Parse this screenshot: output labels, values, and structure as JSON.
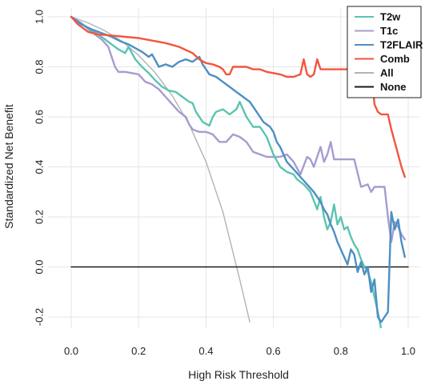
{
  "chart_data": {
    "type": "line",
    "title": "",
    "xlabel": "High Risk Threshold",
    "ylabel": "Standardized Net Benefit",
    "xlim": [
      0.0,
      1.0
    ],
    "ylim": [
      -0.2,
      1.0
    ],
    "xticks": [
      "0.0",
      "0.2",
      "0.4",
      "0.6",
      "0.8",
      "1.0"
    ],
    "yticks": [
      "-0.2",
      "0.0",
      "0.2",
      "0.4",
      "0.6",
      "0.8",
      "1.0"
    ],
    "grid": true,
    "legend_position": "top-right",
    "series": [
      {
        "name": "T2w",
        "color": "#5bc4b0",
        "points": [
          [
            0.0,
            1.0
          ],
          [
            0.02,
            0.98
          ],
          [
            0.05,
            0.955
          ],
          [
            0.08,
            0.93
          ],
          [
            0.1,
            0.91
          ],
          [
            0.12,
            0.89
          ],
          [
            0.14,
            0.87
          ],
          [
            0.16,
            0.855
          ],
          [
            0.17,
            0.88
          ],
          [
            0.19,
            0.83
          ],
          [
            0.21,
            0.8
          ],
          [
            0.23,
            0.775
          ],
          [
            0.25,
            0.745
          ],
          [
            0.27,
            0.72
          ],
          [
            0.29,
            0.705
          ],
          [
            0.31,
            0.7
          ],
          [
            0.33,
            0.68
          ],
          [
            0.35,
            0.66
          ],
          [
            0.36,
            0.655
          ],
          [
            0.37,
            0.62
          ],
          [
            0.39,
            0.58
          ],
          [
            0.41,
            0.565
          ],
          [
            0.42,
            0.6
          ],
          [
            0.43,
            0.62
          ],
          [
            0.45,
            0.63
          ],
          [
            0.47,
            0.61
          ],
          [
            0.49,
            0.63
          ],
          [
            0.5,
            0.66
          ],
          [
            0.52,
            0.6
          ],
          [
            0.54,
            0.56
          ],
          [
            0.56,
            0.56
          ],
          [
            0.58,
            0.52
          ],
          [
            0.6,
            0.45
          ],
          [
            0.62,
            0.4
          ],
          [
            0.64,
            0.38
          ],
          [
            0.66,
            0.37
          ],
          [
            0.67,
            0.35
          ],
          [
            0.69,
            0.33
          ],
          [
            0.71,
            0.3
          ],
          [
            0.72,
            0.265
          ],
          [
            0.73,
            0.23
          ],
          [
            0.74,
            0.28
          ],
          [
            0.75,
            0.2
          ],
          [
            0.76,
            0.15
          ],
          [
            0.77,
            0.18
          ],
          [
            0.78,
            0.25
          ],
          [
            0.79,
            0.17
          ],
          [
            0.8,
            0.2
          ],
          [
            0.81,
            0.15
          ],
          [
            0.82,
            0.16
          ],
          [
            0.83,
            0.12
          ],
          [
            0.84,
            0.09
          ],
          [
            0.85,
            0.07
          ],
          [
            0.86,
            0.03
          ],
          [
            0.87,
            0.0
          ],
          [
            0.88,
            -0.02
          ],
          [
            0.89,
            -0.06
          ],
          [
            0.9,
            -0.12
          ],
          [
            0.91,
            -0.18
          ],
          [
            0.92,
            -0.25
          ]
        ]
      },
      {
        "name": "T1c",
        "color": "#a89bd0",
        "points": [
          [
            0.0,
            1.0
          ],
          [
            0.03,
            0.975
          ],
          [
            0.06,
            0.94
          ],
          [
            0.09,
            0.91
          ],
          [
            0.11,
            0.88
          ],
          [
            0.12,
            0.84
          ],
          [
            0.13,
            0.8
          ],
          [
            0.14,
            0.78
          ],
          [
            0.16,
            0.78
          ],
          [
            0.18,
            0.775
          ],
          [
            0.2,
            0.77
          ],
          [
            0.22,
            0.74
          ],
          [
            0.24,
            0.73
          ],
          [
            0.26,
            0.71
          ],
          [
            0.28,
            0.68
          ],
          [
            0.3,
            0.65
          ],
          [
            0.32,
            0.62
          ],
          [
            0.34,
            0.6
          ],
          [
            0.35,
            0.57
          ],
          [
            0.36,
            0.55
          ],
          [
            0.38,
            0.54
          ],
          [
            0.4,
            0.54
          ],
          [
            0.42,
            0.53
          ],
          [
            0.44,
            0.5
          ],
          [
            0.46,
            0.5
          ],
          [
            0.48,
            0.53
          ],
          [
            0.5,
            0.52
          ],
          [
            0.52,
            0.5
          ],
          [
            0.54,
            0.46
          ],
          [
            0.56,
            0.45
          ],
          [
            0.58,
            0.44
          ],
          [
            0.6,
            0.44
          ],
          [
            0.62,
            0.44
          ],
          [
            0.64,
            0.45
          ],
          [
            0.66,
            0.42
          ],
          [
            0.68,
            0.37
          ],
          [
            0.7,
            0.44
          ],
          [
            0.71,
            0.43
          ],
          [
            0.72,
            0.4
          ],
          [
            0.74,
            0.48
          ],
          [
            0.75,
            0.42
          ],
          [
            0.76,
            0.45
          ],
          [
            0.77,
            0.5
          ],
          [
            0.78,
            0.43
          ],
          [
            0.8,
            0.43
          ],
          [
            0.82,
            0.43
          ],
          [
            0.84,
            0.43
          ],
          [
            0.86,
            0.32
          ],
          [
            0.88,
            0.33
          ],
          [
            0.89,
            0.3
          ],
          [
            0.9,
            0.32
          ],
          [
            0.92,
            0.32
          ],
          [
            0.93,
            0.32
          ],
          [
            0.94,
            0.2
          ],
          [
            0.95,
            0.1
          ],
          [
            0.96,
            0.18
          ],
          [
            0.97,
            0.16
          ],
          [
            0.98,
            0.13
          ],
          [
            0.99,
            0.11
          ]
        ]
      },
      {
        "name": "T2FLAIR",
        "color": "#4d8fc4",
        "points": [
          [
            0.0,
            1.0
          ],
          [
            0.03,
            0.97
          ],
          [
            0.06,
            0.95
          ],
          [
            0.09,
            0.935
          ],
          [
            0.12,
            0.92
          ],
          [
            0.15,
            0.9
          ],
          [
            0.17,
            0.89
          ],
          [
            0.19,
            0.875
          ],
          [
            0.21,
            0.86
          ],
          [
            0.23,
            0.84
          ],
          [
            0.24,
            0.85
          ],
          [
            0.26,
            0.8
          ],
          [
            0.28,
            0.81
          ],
          [
            0.3,
            0.8
          ],
          [
            0.32,
            0.82
          ],
          [
            0.34,
            0.83
          ],
          [
            0.36,
            0.82
          ],
          [
            0.38,
            0.84
          ],
          [
            0.39,
            0.81
          ],
          [
            0.4,
            0.79
          ],
          [
            0.41,
            0.77
          ],
          [
            0.43,
            0.76
          ],
          [
            0.45,
            0.74
          ],
          [
            0.47,
            0.72
          ],
          [
            0.49,
            0.7
          ],
          [
            0.51,
            0.68
          ],
          [
            0.53,
            0.66
          ],
          [
            0.55,
            0.62
          ],
          [
            0.57,
            0.58
          ],
          [
            0.59,
            0.56
          ],
          [
            0.6,
            0.54
          ],
          [
            0.61,
            0.5
          ],
          [
            0.62,
            0.48
          ],
          [
            0.64,
            0.42
          ],
          [
            0.66,
            0.39
          ],
          [
            0.68,
            0.36
          ],
          [
            0.7,
            0.33
          ],
          [
            0.72,
            0.3
          ],
          [
            0.74,
            0.26
          ],
          [
            0.75,
            0.23
          ],
          [
            0.76,
            0.21
          ],
          [
            0.77,
            0.17
          ],
          [
            0.78,
            0.14
          ],
          [
            0.79,
            0.1
          ],
          [
            0.8,
            0.07
          ],
          [
            0.81,
            0.04
          ],
          [
            0.82,
            0.01
          ],
          [
            0.83,
            0.07
          ],
          [
            0.84,
            0.05
          ],
          [
            0.85,
            -0.02
          ],
          [
            0.86,
            0.02
          ],
          [
            0.87,
            -0.03
          ],
          [
            0.88,
            0.0
          ],
          [
            0.89,
            -0.1
          ],
          [
            0.9,
            -0.05
          ],
          [
            0.91,
            -0.2
          ],
          [
            0.92,
            -0.22
          ],
          [
            0.93,
            -0.2
          ],
          [
            0.94,
            -0.18
          ],
          [
            0.95,
            0.22
          ],
          [
            0.96,
            0.15
          ],
          [
            0.97,
            0.19
          ],
          [
            0.98,
            0.1
          ],
          [
            0.99,
            0.04
          ]
        ]
      },
      {
        "name": "Comb",
        "color": "#f2553f",
        "points": [
          [
            0.0,
            1.0
          ],
          [
            0.02,
            0.97
          ],
          [
            0.05,
            0.94
          ],
          [
            0.08,
            0.93
          ],
          [
            0.12,
            0.925
          ],
          [
            0.16,
            0.92
          ],
          [
            0.2,
            0.915
          ],
          [
            0.24,
            0.905
          ],
          [
            0.28,
            0.895
          ],
          [
            0.32,
            0.88
          ],
          [
            0.36,
            0.855
          ],
          [
            0.38,
            0.83
          ],
          [
            0.4,
            0.815
          ],
          [
            0.42,
            0.81
          ],
          [
            0.44,
            0.8
          ],
          [
            0.45,
            0.79
          ],
          [
            0.46,
            0.77
          ],
          [
            0.47,
            0.77
          ],
          [
            0.48,
            0.8
          ],
          [
            0.5,
            0.8
          ],
          [
            0.52,
            0.8
          ],
          [
            0.54,
            0.79
          ],
          [
            0.56,
            0.79
          ],
          [
            0.58,
            0.78
          ],
          [
            0.6,
            0.775
          ],
          [
            0.62,
            0.77
          ],
          [
            0.64,
            0.76
          ],
          [
            0.66,
            0.76
          ],
          [
            0.68,
            0.77
          ],
          [
            0.69,
            0.83
          ],
          [
            0.7,
            0.77
          ],
          [
            0.71,
            0.76
          ],
          [
            0.72,
            0.77
          ],
          [
            0.73,
            0.83
          ],
          [
            0.74,
            0.79
          ],
          [
            0.76,
            0.79
          ],
          [
            0.78,
            0.79
          ],
          [
            0.8,
            0.79
          ],
          [
            0.82,
            0.79
          ],
          [
            0.84,
            0.8
          ],
          [
            0.86,
            0.78
          ],
          [
            0.88,
            0.79
          ],
          [
            0.89,
            0.8
          ],
          [
            0.9,
            0.65
          ],
          [
            0.91,
            0.62
          ],
          [
            0.92,
            0.61
          ],
          [
            0.93,
            0.61
          ],
          [
            0.94,
            0.61
          ],
          [
            0.95,
            0.55
          ],
          [
            0.96,
            0.5
          ],
          [
            0.97,
            0.45
          ],
          [
            0.98,
            0.4
          ],
          [
            0.99,
            0.36
          ]
        ]
      },
      {
        "name": "All",
        "color": "#b3b3b3",
        "points": [
          [
            0.0,
            1.0
          ],
          [
            0.05,
            0.976
          ],
          [
            0.1,
            0.944
          ],
          [
            0.15,
            0.903
          ],
          [
            0.2,
            0.846
          ],
          [
            0.25,
            0.775
          ],
          [
            0.3,
            0.684
          ],
          [
            0.35,
            0.57
          ],
          [
            0.4,
            0.42
          ],
          [
            0.45,
            0.22
          ],
          [
            0.5,
            -0.05
          ],
          [
            0.53,
            -0.22
          ]
        ]
      },
      {
        "name": "None",
        "color": "#1a1a1a",
        "points": [
          [
            0.0,
            0.0
          ],
          [
            1.0,
            0.0
          ]
        ]
      }
    ]
  }
}
